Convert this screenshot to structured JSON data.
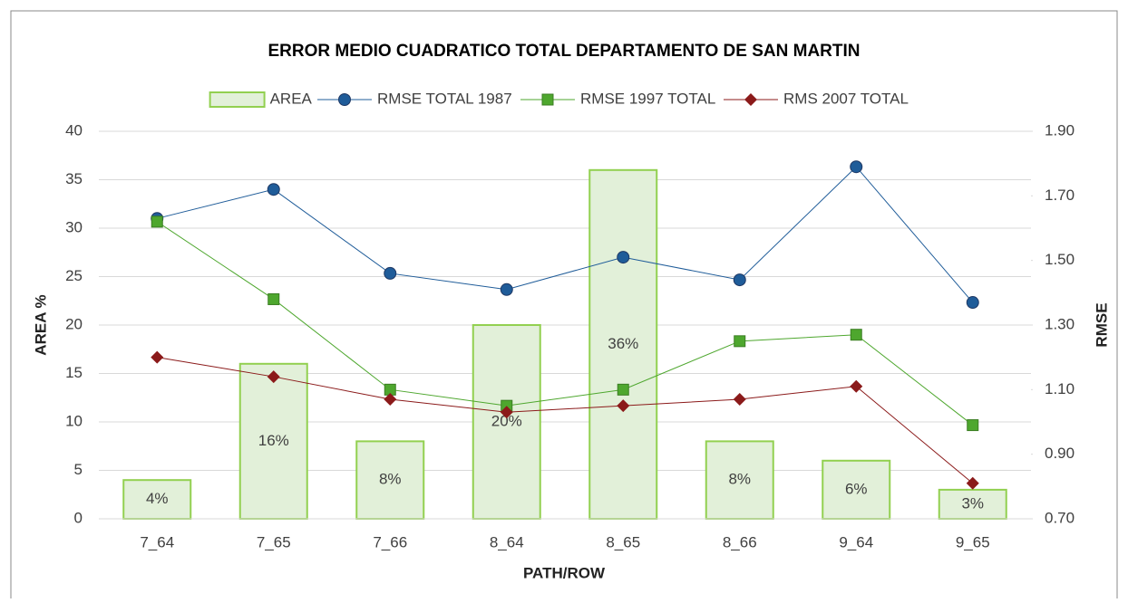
{
  "chart_data": {
    "type": "bar",
    "title": "ERROR MEDIO CUADRATICO TOTAL  DEPARTAMENTO DE SAN MARTIN",
    "x_label": "PATH/ROW",
    "y_label": "AREA %",
    "y2_label": "RMSE",
    "categories": [
      "7_64",
      "7_65",
      "7_66",
      "8_64",
      "8_65",
      "8_66",
      "9_64",
      "9_65"
    ],
    "series": [
      {
        "name": "AREA",
        "type": "bar",
        "color": "#e2f0d9",
        "edge": "#92d050",
        "values": [
          4,
          16,
          8,
          20,
          36,
          8,
          6,
          3
        ],
        "value_labels": [
          "4%",
          "16%",
          "8%",
          "20%",
          "36%",
          "8%",
          "6%",
          "3%"
        ]
      },
      {
        "name": "RMSE TOTAL 1987",
        "type": "line",
        "axis": "y2",
        "marker": "circle",
        "color": "#1f5c99",
        "values": [
          1.63,
          1.72,
          1.46,
          1.41,
          1.51,
          1.44,
          1.79,
          1.37
        ]
      },
      {
        "name": "RMSE 1997 TOTAL",
        "type": "line",
        "axis": "y2",
        "marker": "square",
        "color": "#4ea72e",
        "values": [
          1.62,
          1.38,
          1.1,
          1.05,
          1.1,
          1.25,
          1.27,
          0.99
        ]
      },
      {
        "name": "RMS 2007 TOTAL",
        "type": "line",
        "axis": "y2",
        "marker": "diamond",
        "color": "#8b1a1a",
        "values": [
          1.2,
          1.14,
          1.07,
          1.03,
          1.05,
          1.07,
          1.11,
          0.81
        ]
      }
    ],
    "ylim": [
      0,
      40
    ],
    "yticks": [
      0,
      5,
      10,
      15,
      20,
      25,
      30,
      35,
      40
    ],
    "y2lim": [
      0.7,
      1.9
    ],
    "y2ticks": [
      {
        "value": 0.7,
        "label": "0.70"
      },
      {
        "value": 0.9,
        "label": "0.90"
      },
      {
        "value": 1.1,
        "label": "1.10"
      },
      {
        "value": 1.3,
        "label": "1.30"
      },
      {
        "value": 1.5,
        "label": "1.50"
      },
      {
        "value": 1.7,
        "label": "1.70"
      },
      {
        "value": 1.9,
        "label": "1.90"
      }
    ],
    "grid": true
  }
}
